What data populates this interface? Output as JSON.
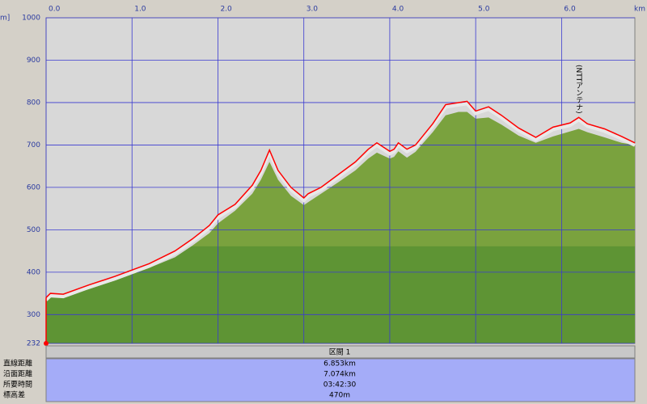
{
  "chart_data": {
    "type": "area",
    "x_label": "km",
    "y_label": "m]",
    "x": [
      0,
      0.05,
      0.2,
      0.5,
      0.8,
      1.0,
      1.2,
      1.5,
      1.7,
      1.9,
      2.0,
      2.2,
      2.4,
      2.5,
      2.6,
      2.7,
      2.85,
      3.0,
      3.05,
      3.2,
      3.4,
      3.6,
      3.75,
      3.85,
      4.0,
      4.05,
      4.1,
      4.2,
      4.3,
      4.5,
      4.65,
      4.8,
      4.9,
      5.0,
      5.15,
      5.3,
      5.5,
      5.7,
      5.9,
      6.1,
      6.2,
      6.3,
      6.5,
      6.7,
      6.853
    ],
    "series": [
      {
        "color": "#7aa23e",
        "values": [
          335,
          345,
          345,
          360,
          380,
          395,
          410,
          435,
          462,
          492,
          515,
          545,
          585,
          618,
          660,
          618,
          580,
          558,
          565,
          585,
          612,
          640,
          668,
          682,
          668,
          672,
          685,
          670,
          684,
          730,
          770,
          778,
          778,
          762,
          765,
          748,
          722,
          705,
          720,
          732,
          738,
          730,
          718,
          705,
          700
        ]
      },
      {
        "color": "#ff0000",
        "values": [
          340,
          350,
          348,
          370,
          390,
          405,
          420,
          450,
          478,
          510,
          535,
          560,
          605,
          640,
          688,
          640,
          600,
          575,
          585,
          600,
          630,
          660,
          690,
          705,
          685,
          690,
          705,
          690,
          700,
          750,
          795,
          800,
          803,
          780,
          790,
          770,
          740,
          718,
          742,
          752,
          765,
          750,
          738,
          720,
          705
        ]
      }
    ],
    "shade_threshold": 461,
    "shade_color": "#5e9434",
    "xlim": [
      0,
      6.853
    ],
    "xticks": [
      {
        "value": 0,
        "label": "0.0"
      },
      {
        "value": 1,
        "label": "1.0"
      },
      {
        "value": 2,
        "label": "2.0"
      },
      {
        "value": 3,
        "label": "3.0"
      },
      {
        "value": 4,
        "label": "4.0"
      },
      {
        "value": 5,
        "label": "5.0"
      },
      {
        "value": 6,
        "label": "6.0"
      }
    ],
    "ylim": [
      232,
      1000
    ],
    "yticks": [
      232,
      300,
      400,
      500,
      600,
      700,
      800,
      900,
      1000
    ],
    "grid": true,
    "annotations": [
      {
        "text": "(NTTアンテナ)",
        "x": 6.2
      }
    ]
  },
  "summary": {
    "header": "区間 1",
    "rows": [
      [
        "直線距離",
        "6.853km"
      ],
      [
        "沿面距離",
        "7.074km"
      ],
      [
        "所要時間",
        "03:42:30"
      ],
      [
        "標高差",
        "470m"
      ]
    ]
  }
}
